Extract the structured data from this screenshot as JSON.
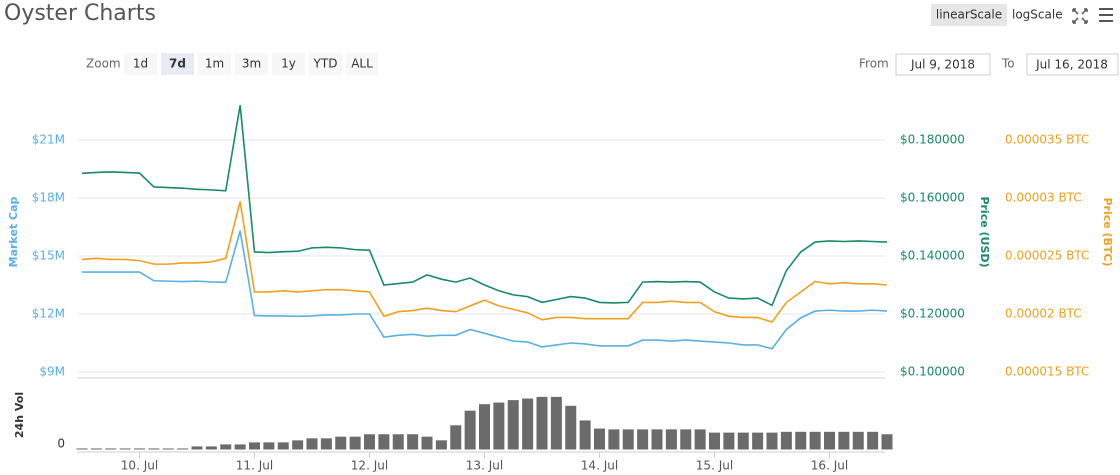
{
  "header": {
    "title": "Oyster Charts",
    "scale_buttons": [
      "linearScale",
      "logScale"
    ]
  },
  "toolbar": {
    "zoom_label": "Zoom",
    "zoom_buttons": [
      "1d",
      "7d",
      "1m",
      "3m",
      "1y",
      "YTD",
      "ALL"
    ],
    "from_label": "From",
    "from_value": "Jul 9, 2018",
    "to_label": "To",
    "to_value": "Jul 16, 2018"
  },
  "chart_data": {
    "type": "line",
    "categories": [
      null,
      null,
      null,
      null,
      "10. Jul",
      null,
      null,
      null,
      null,
      null,
      null,
      null,
      "11. Jul",
      null,
      null,
      null,
      null,
      null,
      null,
      null,
      "12. Jul",
      null,
      null,
      null,
      null,
      null,
      null,
      null,
      "13. Jul",
      null,
      null,
      null,
      null,
      null,
      null,
      null,
      "14. Jul",
      null,
      null,
      null,
      null,
      null,
      null,
      null,
      "15. Jul",
      null,
      null,
      null,
      null,
      null,
      null,
      null,
      "16. Jul",
      null,
      null,
      null,
      null
    ],
    "ylabel": "Market Cap",
    "y2label": "Price (USD)",
    "y3label": "Price (BTC)",
    "y4label": "24h Vol",
    "series": [
      {
        "axis": "y",
        "color": "#58b0e6",
        "values": [
          14170000,
          14170000,
          14170000,
          14170000,
          14170000,
          13720000,
          13700000,
          13680000,
          13700000,
          13660000,
          13640000,
          16300000,
          11920000,
          11900000,
          11900000,
          11880000,
          11900000,
          11950000,
          11950000,
          12000000,
          12000000,
          10800000,
          10900000,
          10950000,
          10850000,
          10900000,
          10900000,
          11200000,
          11000000,
          10800000,
          10600000,
          10550000,
          10300000,
          10400000,
          10500000,
          10450000,
          10350000,
          10350000,
          10350000,
          10650000,
          10650000,
          10600000,
          10650000,
          10600000,
          10550000,
          10500000,
          10400000,
          10400000,
          10200000,
          11200000,
          11800000,
          12150000,
          12200000,
          12150000,
          12150000,
          12200000,
          12150000
        ]
      },
      {
        "axis": "y2",
        "color": "#178b64",
        "values": [
          0.1685,
          0.1688,
          0.169,
          0.1688,
          0.1686,
          0.1638,
          0.1636,
          0.1634,
          0.163,
          0.1628,
          0.1625,
          0.192,
          0.1414,
          0.1412,
          0.1415,
          0.1416,
          0.1428,
          0.143,
          0.1428,
          0.1422,
          0.142,
          0.13,
          0.1305,
          0.131,
          0.1335,
          0.132,
          0.131,
          0.1324,
          0.13,
          0.128,
          0.1266,
          0.126,
          0.124,
          0.125,
          0.126,
          0.1255,
          0.124,
          0.1238,
          0.124,
          0.131,
          0.1312,
          0.131,
          0.1312,
          0.131,
          0.1276,
          0.1255,
          0.1252,
          0.1255,
          0.123,
          0.135,
          0.1414,
          0.1448,
          0.1452,
          0.145,
          0.1452,
          0.145,
          0.1448
        ]
      },
      {
        "axis": "y3",
        "color": "#f0a01e",
        "values": [
          2.47e-05,
          2.48e-05,
          2.47e-05,
          2.47e-05,
          2.46e-05,
          2.43e-05,
          2.43e-05,
          2.44e-05,
          2.44e-05,
          2.45e-05,
          2.48e-05,
          2.97e-05,
          2.19e-05,
          2.19e-05,
          2.2e-05,
          2.19e-05,
          2.2e-05,
          2.21e-05,
          2.21e-05,
          2.2e-05,
          2.19e-05,
          1.98e-05,
          2.02e-05,
          2.03e-05,
          2.05e-05,
          2.03e-05,
          2.02e-05,
          2.07e-05,
          2.12e-05,
          2.07e-05,
          2.04e-05,
          2.01e-05,
          1.95e-05,
          1.97e-05,
          1.97e-05,
          1.96e-05,
          1.96e-05,
          1.96e-05,
          1.96e-05,
          2.1e-05,
          2.1e-05,
          2.11e-05,
          2.1e-05,
          2.1e-05,
          2.02e-05,
          1.98e-05,
          1.97e-05,
          1.97e-05,
          1.93e-05,
          2.1e-05,
          2.19e-05,
          2.28e-05,
          2.26e-05,
          2.27e-05,
          2.26e-05,
          2.26e-05,
          2.25e-05
        ]
      },
      {
        "axis": "y4",
        "type": "bar",
        "color": "#6b6b6b",
        "values": [
          0.25,
          0.25,
          0.25,
          0.25,
          0.25,
          0.25,
          0.25,
          0.25,
          0.5,
          0.5,
          0.75,
          0.75,
          1,
          1,
          1,
          1.25,
          1.5,
          1.5,
          1.7,
          1.7,
          2,
          2,
          2,
          2,
          1.7,
          1.25,
          3.1,
          4.9,
          5.7,
          5.9,
          6.2,
          6.4,
          6.6,
          6.6,
          5.5,
          3.7,
          2.7,
          2.6,
          2.6,
          2.6,
          2.6,
          2.6,
          2.6,
          2.6,
          2.2,
          2.2,
          2.2,
          2.2,
          2.2,
          2.3,
          2.3,
          2.3,
          2.3,
          2.3,
          2.3,
          2.3,
          2
        ]
      }
    ],
    "ylim": [
      9000000,
      23400000
    ],
    "yticks": [
      {
        "value": 9000000,
        "label": "$9M"
      },
      {
        "value": 12000000,
        "label": "$12M"
      },
      {
        "value": 15000000,
        "label": "$15M"
      },
      {
        "value": 18000000,
        "label": "$18M"
      },
      {
        "value": 21000000,
        "label": "$21M"
      }
    ],
    "y2lim": [
      0.1,
      0.196
    ],
    "y2ticks": [
      {
        "value": 0.1,
        "label": "$0.100000"
      },
      {
        "value": 0.12,
        "label": "$0.120000"
      },
      {
        "value": 0.14,
        "label": "$0.140000"
      },
      {
        "value": 0.16,
        "label": "$0.160000"
      },
      {
        "value": 0.18,
        "label": "$0.180000"
      }
    ],
    "y3lim": [
      1.5e-05,
      3.9e-05
    ],
    "y3ticks": [
      {
        "value": 1.5e-05,
        "label": "0.000015 BTC"
      },
      {
        "value": 2e-05,
        "label": "0.00002 BTC"
      },
      {
        "value": 2.5e-05,
        "label": "0.000025 BTC"
      },
      {
        "value": 3e-05,
        "label": "0.00003 BTC"
      },
      {
        "value": 3.5e-05,
        "label": "0.000035 BTC"
      }
    ],
    "y4lim": [
      0,
      8
    ],
    "y4ticks": [
      0
    ],
    "grid": true
  }
}
